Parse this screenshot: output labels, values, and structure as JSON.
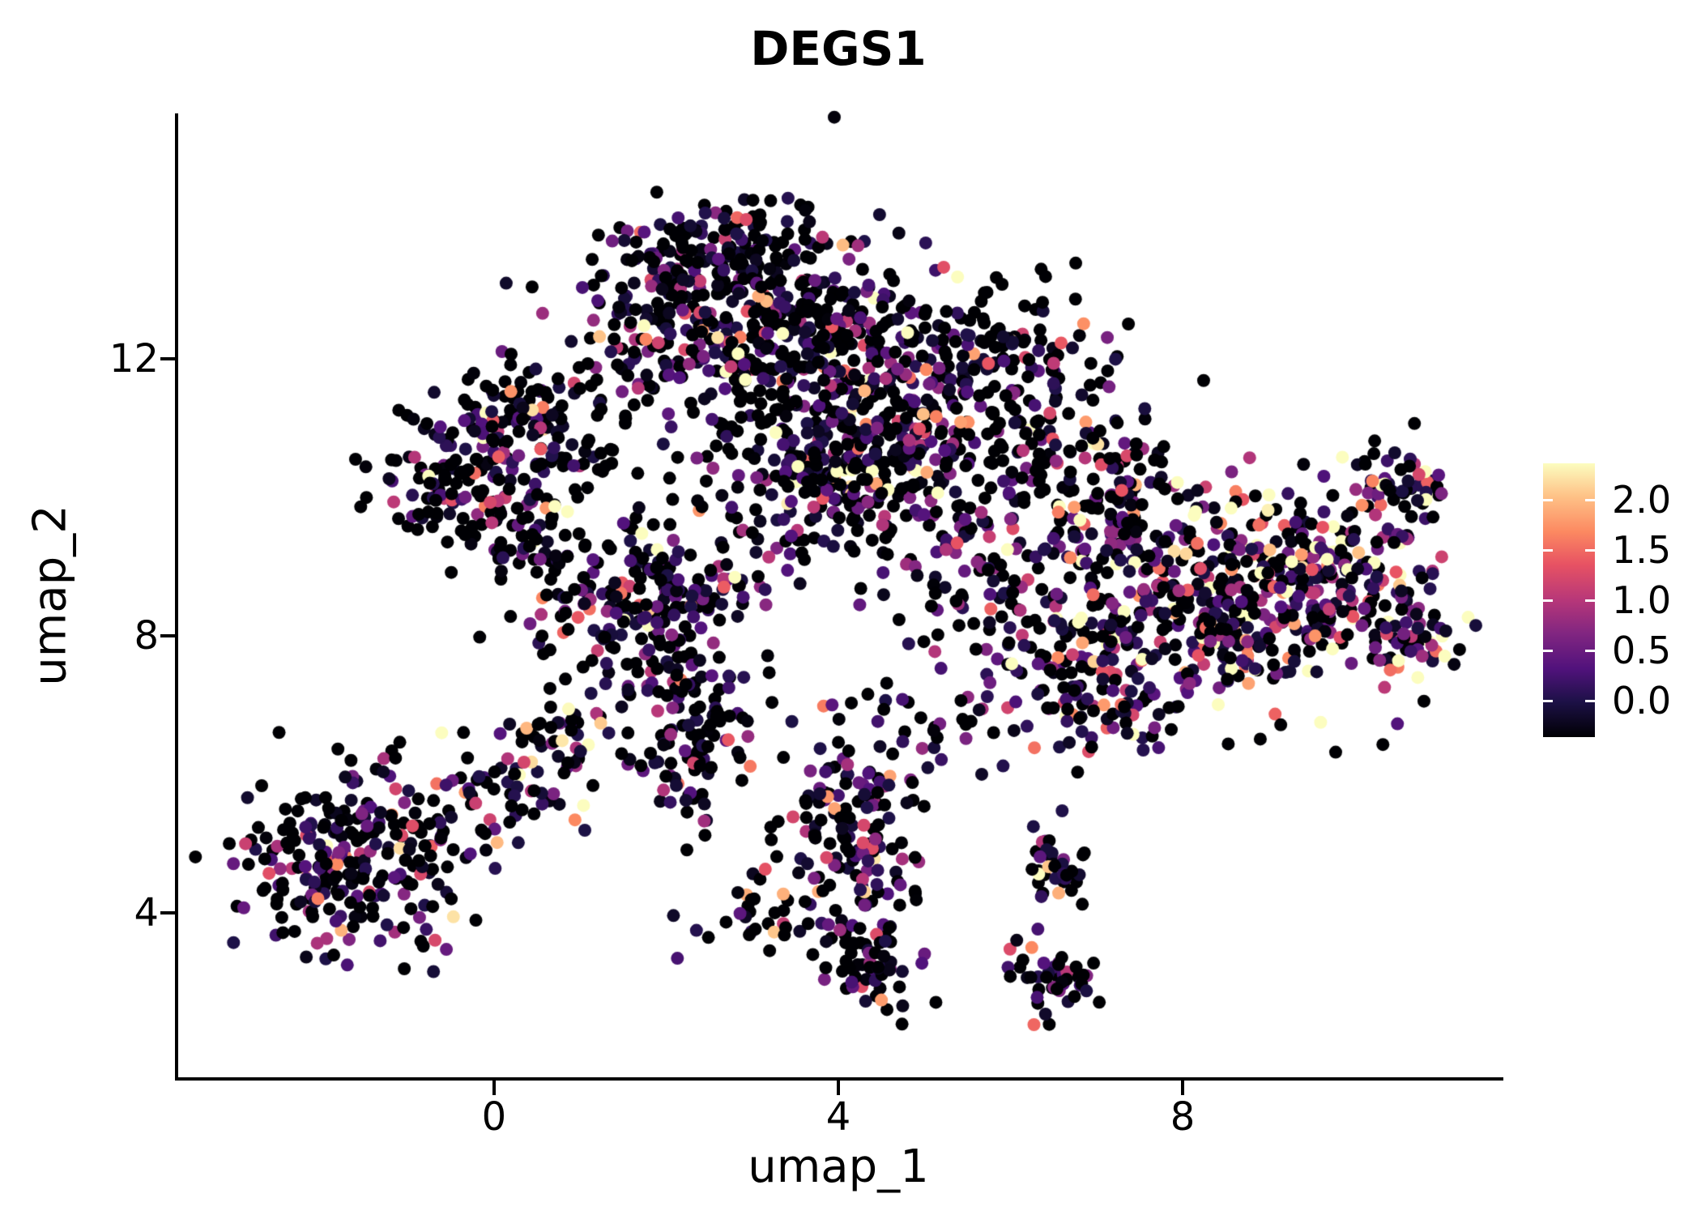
{
  "colors": {
    "background": "#ffffff",
    "axis": "#000000",
    "text": "#000000"
  },
  "chart_data": {
    "type": "scatter",
    "title": "DEGS1",
    "xlabel": "umap_1",
    "ylabel": "umap_2",
    "x_ticks": [
      0,
      4,
      8
    ],
    "y_ticks": [
      12,
      8,
      4
    ],
    "xlim": [
      -3.67,
      11.67
    ],
    "ylim": [
      1.63,
      15.54
    ],
    "grid": false,
    "point_radius_px": 8,
    "seed": 42,
    "legend": {
      "position": "right",
      "ticks": [
        "2.0",
        "1.5",
        "1.0",
        "0.5",
        "0.0"
      ],
      "vmin": 0.0,
      "vmax": 2.2,
      "colormap_name": "magma",
      "colormap_stops": [
        {
          "t": 0.0,
          "color": "#000004"
        },
        {
          "t": 0.13,
          "color": "#1d1147"
        },
        {
          "t": 0.25,
          "color": "#51127c"
        },
        {
          "t": 0.38,
          "color": "#822681"
        },
        {
          "t": 0.5,
          "color": "#b73779"
        },
        {
          "t": 0.63,
          "color": "#e75263"
        },
        {
          "t": 0.75,
          "color": "#fc8961"
        },
        {
          "t": 0.88,
          "color": "#fec287"
        },
        {
          "t": 1.0,
          "color": "#fcfdbf"
        }
      ]
    },
    "clusters": [
      {
        "n": 260,
        "cx": 2.4,
        "cy": 12.7,
        "sx": 0.85,
        "sy": 0.65,
        "p0": 0.45,
        "mean": 0.6
      },
      {
        "n": 210,
        "cx": 3.5,
        "cy": 12.2,
        "sx": 0.8,
        "sy": 0.8,
        "p0": 0.45,
        "mean": 0.6
      },
      {
        "n": 90,
        "cx": 2.9,
        "cy": 13.7,
        "sx": 0.7,
        "sy": 0.3,
        "p0": 0.5,
        "mean": 0.55
      },
      {
        "n": 180,
        "cx": 4.4,
        "cy": 11.4,
        "sx": 0.8,
        "sy": 0.7,
        "p0": 0.45,
        "mean": 0.6
      },
      {
        "n": 160,
        "cx": 4.1,
        "cy": 10.4,
        "sx": 0.6,
        "sy": 0.5,
        "p0": 0.4,
        "mean": 0.7
      },
      {
        "n": 80,
        "cx": 5.4,
        "cy": 11.8,
        "sx": 0.7,
        "sy": 0.7,
        "p0": 0.5,
        "mean": 0.55
      },
      {
        "n": 70,
        "cx": 6.2,
        "cy": 12.0,
        "sx": 0.6,
        "sy": 0.5,
        "p0": 0.55,
        "mean": 0.5
      },
      {
        "n": 90,
        "cx": 5.2,
        "cy": 9.9,
        "sx": 0.8,
        "sy": 0.8,
        "p0": 0.5,
        "mean": 0.6
      },
      {
        "n": 170,
        "cx": -0.2,
        "cy": 10.4,
        "sx": 0.55,
        "sy": 0.6,
        "p0": 0.45,
        "mean": 0.6
      },
      {
        "n": 90,
        "cx": 0.7,
        "cy": 11.0,
        "sx": 0.55,
        "sy": 0.45,
        "p0": 0.5,
        "mean": 0.55
      },
      {
        "n": 45,
        "cx": 0.5,
        "cy": 9.4,
        "sx": 0.4,
        "sy": 0.35,
        "p0": 0.5,
        "mean": 0.55
      },
      {
        "n": 200,
        "cx": 1.7,
        "cy": 8.3,
        "sx": 0.6,
        "sy": 0.65,
        "p0": 0.4,
        "mean": 0.65
      },
      {
        "n": 70,
        "cx": 2.3,
        "cy": 7.0,
        "sx": 0.5,
        "sy": 0.5,
        "p0": 0.45,
        "mean": 0.6
      },
      {
        "n": 45,
        "cx": 2.2,
        "cy": 6.0,
        "sx": 0.35,
        "sy": 0.45,
        "p0": 0.5,
        "mean": 0.6
      },
      {
        "n": 60,
        "cx": 3.1,
        "cy": 9.4,
        "sx": 0.7,
        "sy": 0.7,
        "p0": 0.5,
        "mean": 0.6
      },
      {
        "n": 330,
        "cx": 8.3,
        "cy": 8.3,
        "sx": 1.0,
        "sy": 0.75,
        "p0": 0.28,
        "mean": 0.95
      },
      {
        "n": 200,
        "cx": 9.5,
        "cy": 8.9,
        "sx": 0.75,
        "sy": 0.6,
        "p0": 0.28,
        "mean": 1.0
      },
      {
        "n": 120,
        "cx": 7.3,
        "cy": 9.7,
        "sx": 0.65,
        "sy": 0.55,
        "p0": 0.35,
        "mean": 0.8
      },
      {
        "n": 100,
        "cx": 7.0,
        "cy": 7.2,
        "sx": 0.55,
        "sy": 0.5,
        "p0": 0.35,
        "mean": 0.8
      },
      {
        "n": 60,
        "cx": 10.55,
        "cy": 10.1,
        "sx": 0.33,
        "sy": 0.33,
        "p0": 0.35,
        "mean": 0.9
      },
      {
        "n": 45,
        "cx": 10.65,
        "cy": 7.9,
        "sx": 0.28,
        "sy": 0.33,
        "p0": 0.3,
        "mean": 1.0
      },
      {
        "n": 60,
        "cx": 6.6,
        "cy": 10.6,
        "sx": 0.6,
        "sy": 0.5,
        "p0": 0.5,
        "mean": 0.6
      },
      {
        "n": 70,
        "cx": 6.0,
        "cy": 8.6,
        "sx": 0.7,
        "sy": 0.8,
        "p0": 0.5,
        "mean": 0.7
      },
      {
        "n": 220,
        "cx": -1.3,
        "cy": 4.8,
        "sx": 0.75,
        "sy": 0.65,
        "p0": 0.48,
        "mean": 0.6
      },
      {
        "n": 50,
        "cx": -2.3,
        "cy": 4.6,
        "sx": 0.35,
        "sy": 0.4,
        "p0": 0.48,
        "mean": 0.6
      },
      {
        "n": 60,
        "cx": 0.2,
        "cy": 5.9,
        "sx": 0.5,
        "sy": 0.45,
        "p0": 0.45,
        "mean": 0.65
      },
      {
        "n": 25,
        "cx": 0.9,
        "cy": 6.6,
        "sx": 0.3,
        "sy": 0.25,
        "p0": 0.5,
        "mean": 0.6
      },
      {
        "n": 80,
        "cx": 4.0,
        "cy": 5.6,
        "sx": 0.45,
        "sy": 0.5,
        "p0": 0.45,
        "mean": 0.65
      },
      {
        "n": 55,
        "cx": 4.3,
        "cy": 4.6,
        "sx": 0.3,
        "sy": 0.35,
        "p0": 0.45,
        "mean": 0.65
      },
      {
        "n": 60,
        "cx": 4.35,
        "cy": 3.3,
        "sx": 0.3,
        "sy": 0.35,
        "p0": 0.45,
        "mean": 0.65
      },
      {
        "n": 35,
        "cx": 3.2,
        "cy": 4.0,
        "sx": 0.45,
        "sy": 0.25,
        "p0": 0.5,
        "mean": 0.6
      },
      {
        "n": 40,
        "cx": 6.45,
        "cy": 4.6,
        "sx": 0.22,
        "sy": 0.3,
        "p0": 0.5,
        "mean": 0.6
      },
      {
        "n": 45,
        "cx": 6.5,
        "cy": 3.05,
        "sx": 0.25,
        "sy": 0.3,
        "p0": 0.45,
        "mean": 0.65
      },
      {
        "n": 45,
        "cx": 5.0,
        "cy": 6.7,
        "sx": 0.7,
        "sy": 0.5,
        "p0": 0.5,
        "mean": 0.6
      }
    ]
  }
}
